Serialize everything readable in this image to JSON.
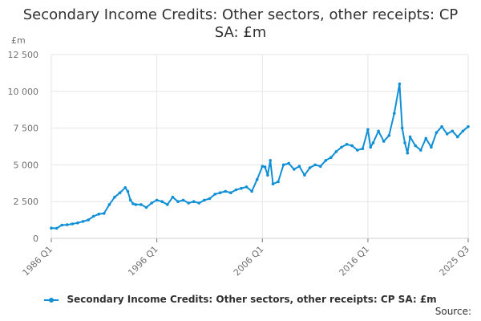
{
  "title_line1": "Secondary Income Credits: Other sectors, other receipts: CP",
  "title_line2": "SA: £m",
  "y_unit": "£m",
  "source": "Source:",
  "colors": {
    "series": "#0f8fd6",
    "grid": "#e6e6e6",
    "text": "#323132",
    "axis": "#707071"
  },
  "chart_data": {
    "type": "line",
    "title": "Secondary Income Credits: Other sectors, other receipts: CP SA: £m",
    "ylabel": "£m",
    "xlabel": "",
    "ylim": [
      0,
      12500
    ],
    "yticks": [
      0,
      2500,
      5000,
      7500,
      10000,
      12500
    ],
    "ytick_labels": [
      "0",
      "2 500",
      "5 000",
      "7 500",
      "10 000",
      "12 500"
    ],
    "xticks": [
      "1986 Q1",
      "1996 Q1",
      "2006 Q1",
      "2016 Q1",
      "2025 Q3"
    ],
    "x_start": "1986 Q1",
    "x_end": "2025 Q3",
    "grid": true,
    "legend_position": "bottom",
    "series": [
      {
        "name": "Secondary Income Credits: Other sectors, other receipts: CP SA: £m",
        "x": [
          "1986 Q1",
          "1986 Q3",
          "1987 Q1",
          "1987 Q3",
          "1988 Q1",
          "1988 Q3",
          "1989 Q1",
          "1989 Q3",
          "1990 Q1",
          "1990 Q3",
          "1991 Q1",
          "1991 Q3",
          "1992 Q1",
          "1992 Q3",
          "1993 Q1",
          "1993 Q2",
          "1993 Q3",
          "1993 Q4",
          "1994 Q1",
          "1994 Q3",
          "1995 Q1",
          "1995 Q3",
          "1996 Q1",
          "1996 Q3",
          "1997 Q1",
          "1997 Q3",
          "1998 Q1",
          "1998 Q3",
          "1999 Q1",
          "1999 Q3",
          "2000 Q1",
          "2000 Q3",
          "2001 Q1",
          "2001 Q3",
          "2002 Q1",
          "2002 Q3",
          "2003 Q1",
          "2003 Q3",
          "2004 Q1",
          "2004 Q3",
          "2005 Q1",
          "2005 Q3",
          "2006 Q1",
          "2006 Q2",
          "2006 Q3",
          "2006 Q4",
          "2007 Q1",
          "2007 Q3",
          "2008 Q1",
          "2008 Q3",
          "2009 Q1",
          "2009 Q3",
          "2010 Q1",
          "2010 Q3",
          "2011 Q1",
          "2011 Q3",
          "2012 Q1",
          "2012 Q3",
          "2013 Q1",
          "2013 Q3",
          "2014 Q1",
          "2014 Q3",
          "2015 Q1",
          "2015 Q3",
          "2016 Q1",
          "2016 Q2",
          "2016 Q3",
          "2017 Q1",
          "2017 Q3",
          "2018 Q1",
          "2018 Q3",
          "2019 Q1",
          "2019 Q2",
          "2019 Q3",
          "2019 Q4",
          "2020 Q1",
          "2020 Q3",
          "2021 Q1",
          "2021 Q3",
          "2022 Q1",
          "2022 Q3",
          "2023 Q1",
          "2023 Q3",
          "2024 Q1",
          "2024 Q3",
          "2025 Q1",
          "2025 Q3"
        ],
        "values": [
          700,
          680,
          900,
          920,
          980,
          1050,
          1150,
          1250,
          1500,
          1650,
          1700,
          2300,
          2800,
          3100,
          3450,
          3200,
          2600,
          2350,
          2300,
          2300,
          2100,
          2400,
          2600,
          2500,
          2300,
          2800,
          2500,
          2600,
          2400,
          2500,
          2400,
          2600,
          2700,
          3000,
          3100,
          3200,
          3100,
          3300,
          3400,
          3500,
          3200,
          4000,
          4900,
          4850,
          4300,
          5300,
          3700,
          3850,
          5000,
          5100,
          4700,
          4900,
          4300,
          4800,
          5000,
          4900,
          5300,
          5500,
          5900,
          6200,
          6400,
          6300,
          6000,
          6100,
          7400,
          6200,
          6500,
          7300,
          6600,
          7000,
          8500,
          10500,
          7500,
          6500,
          5800,
          6900,
          6300,
          6000,
          6800,
          6200,
          7200,
          7600,
          7100,
          7300,
          6900,
          7300,
          7600
        ]
      }
    ]
  }
}
